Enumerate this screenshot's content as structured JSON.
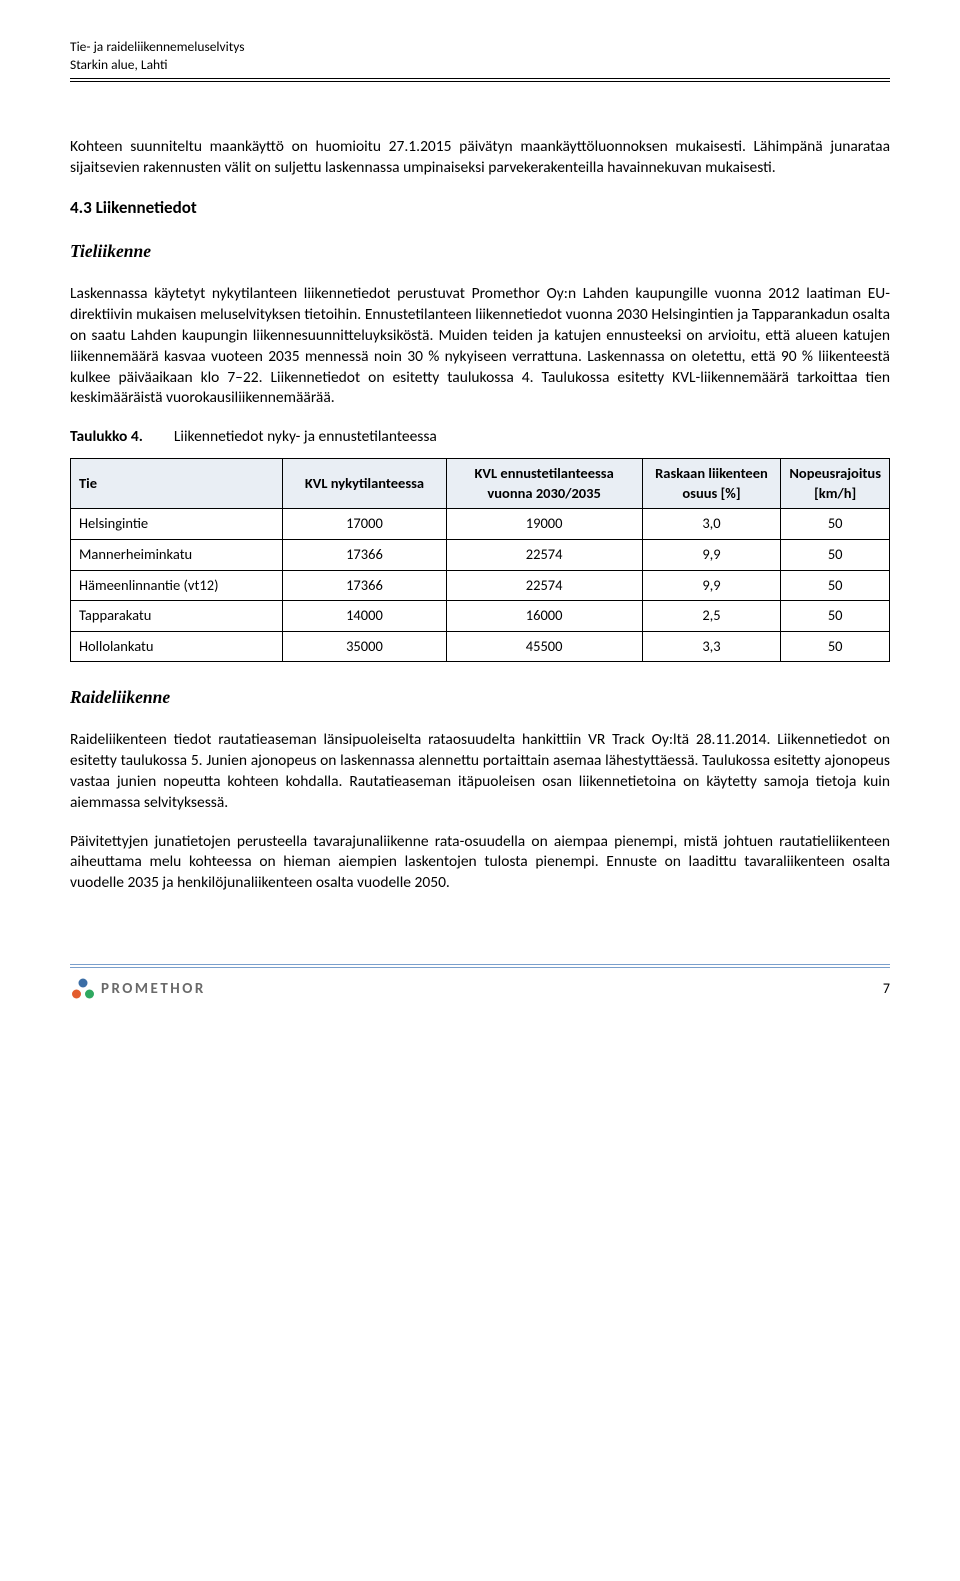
{
  "header": {
    "line1": "Tie- ja raideliikennemeluselvitys",
    "line2": "Starkin alue, Lahti"
  },
  "p1": "Kohteen suunniteltu maankäyttö on huomioitu 27.1.2015 päivätyn maankäyttöluonnoksen mukaisesti. Lähimpänä junarataa sijaitsevien rakennusten välit on suljettu laskennassa umpinaiseksi parvekerakenteilla havainnekuvan mukaisesti.",
  "section43": "4.3   Liikennetiedot",
  "tieliikenne_heading": "Tieliikenne",
  "p2": "Laskennassa käytetyt nykytilanteen liikennetiedot perustuvat Promethor Oy:n Lahden kaupungille vuonna 2012 laatiman EU-direktiivin mukaisen meluselvityksen tietoihin. Ennustetilanteen liikennetiedot vuonna 2030 Helsingintien ja Tapparankadun osalta on saatu Lahden kaupungin liikennesuunnitteluyksiköstä. Muiden teiden ja katujen ennusteeksi on arvioitu, että alueen katujen liikennemäärä kasvaa vuoteen 2035 mennessä noin 30 % nykyiseen verrattuna. Laskennassa on oletettu, että 90 % liikenteestä kulkee päiväaikaan klo 7–22. Liikennetiedot on esitetty taulukossa 4. Taulukossa esitetty KVL-liikennemäärä tarkoittaa tien keskimääräistä vuorokausiliikennemäärää.",
  "table_caption_bold": "Taulukko 4.",
  "table_caption_rest": "Liikennetiedot nyky- ja ennustetilanteessa",
  "table": {
    "headers": {
      "tie": "Tie",
      "kvl_nyky": "KVL nykytilanteessa",
      "kvl_ennuste": "KVL ennustetilanteessa vuonna 2030/2035",
      "raskas": "Raskaan liikenteen osuus [%]",
      "nopeus": "Nopeusrajoitus [km/h]"
    },
    "rows": [
      {
        "tie": "Helsingintie",
        "c1": "17000",
        "c2": "19000",
        "c3": "3,0",
        "c4": "50"
      },
      {
        "tie": "Mannerheiminkatu",
        "c1": "17366",
        "c2": "22574",
        "c3": "9,9",
        "c4": "50"
      },
      {
        "tie": "Hämeenlinnantie (vt12)",
        "c1": "17366",
        "c2": "22574",
        "c3": "9,9",
        "c4": "50"
      },
      {
        "tie": "Tapparakatu",
        "c1": "14000",
        "c2": "16000",
        "c3": "2,5",
        "c4": "50"
      },
      {
        "tie": "Hollolankatu",
        "c1": "35000",
        "c2": "45500",
        "c3": "3,3",
        "c4": "50"
      }
    ],
    "colwidths": [
      "26%",
      "20%",
      "24%",
      "17%",
      "13%"
    ],
    "header_bg": "#e9eef4",
    "border_color": "#000000"
  },
  "raideliikenne_heading": "Raideliikenne",
  "p3": "Raideliikenteen tiedot rautatieaseman länsipuoleiselta rataosuudelta hankittiin VR Track Oy:ltä 28.11.2014. Liikennetiedot on esitetty taulukossa 5. Junien ajonopeus on laskennassa alennettu portaittain asemaa lähestyttäessä. Taulukossa esitetty ajonopeus vastaa junien nopeutta kohteen kohdalla. Rautatieaseman itäpuoleisen osan liikennetietoina on käytetty samoja tietoja kuin aiemmassa selvityksessä.",
  "p4": "Päivitettyjen junatietojen perusteella tavarajunaliikenne rata-osuudella on aiempaa pienempi, mistä johtuen rautatieliikenteen aiheuttama melu kohteessa on hieman aiempien laskentojen tulosta pienempi. Ennuste on laadittu tavaraliikenteen osalta vuodelle 2035 ja henkilöjunaliikenteen osalta vuodelle 2050.",
  "footer": {
    "logo_text": "PROMETHOR",
    "page_number": "7",
    "line_color": "#7a9fcc",
    "logo_colors": {
      "top": "#3b6ea5",
      "left": "#e35c2d",
      "right": "#2fa860"
    }
  }
}
